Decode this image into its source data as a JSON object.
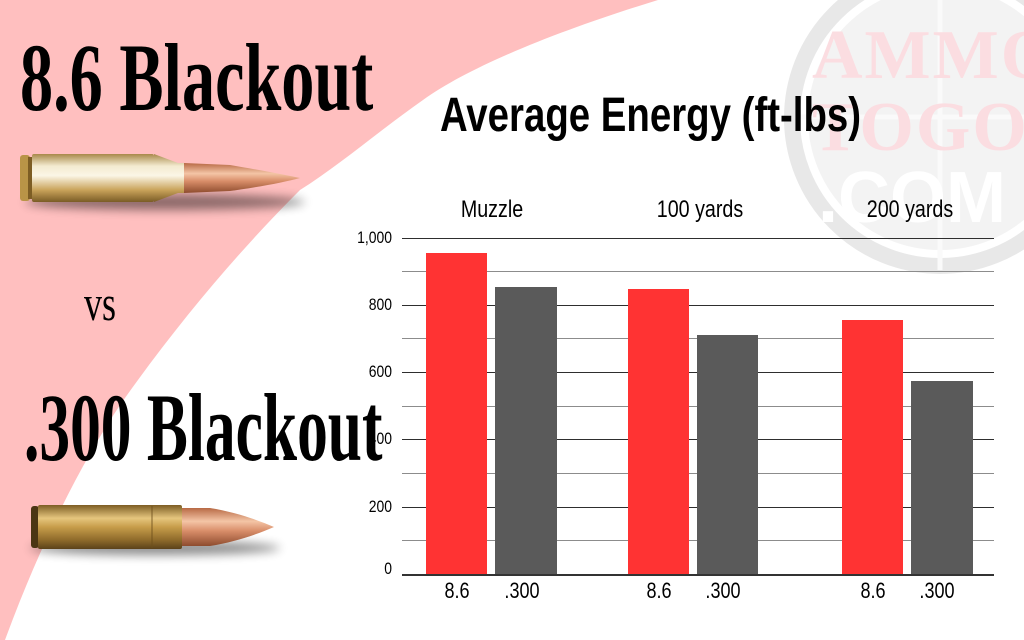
{
  "header": {
    "caliber_a": "8.6 Blackout",
    "versus": "vs",
    "caliber_b": ".300 Blackout"
  },
  "watermark": {
    "line1": "AMMO",
    "line2": "TOGO",
    "line3": ".COM"
  },
  "colors": {
    "pink_background": "#ffbfbf",
    "series_8_6": "#ff3333",
    "series_300": "#5a5a5a",
    "brass": "#c9a24a",
    "copper": "#d98e6a"
  },
  "chart_data": {
    "type": "bar",
    "title": "Average Energy (ft-lbs)",
    "xlabel": "",
    "ylabel": "",
    "categories": [
      "Muzzle",
      "100 yards",
      "200 yards"
    ],
    "series": [
      {
        "name": "8.6",
        "values": [
          955,
          848,
          756
        ]
      },
      {
        "name": ".300",
        "values": [
          853,
          712,
          575
        ]
      }
    ],
    "ylim": [
      0,
      1000
    ],
    "yticks": [
      "0",
      "200",
      "400",
      "600",
      "800",
      "1,000"
    ],
    "minor_gridlines": [
      100,
      300,
      500,
      700,
      900
    ],
    "grid": true,
    "legend": "none (bars labeled beneath: 8.6 / .300)"
  }
}
